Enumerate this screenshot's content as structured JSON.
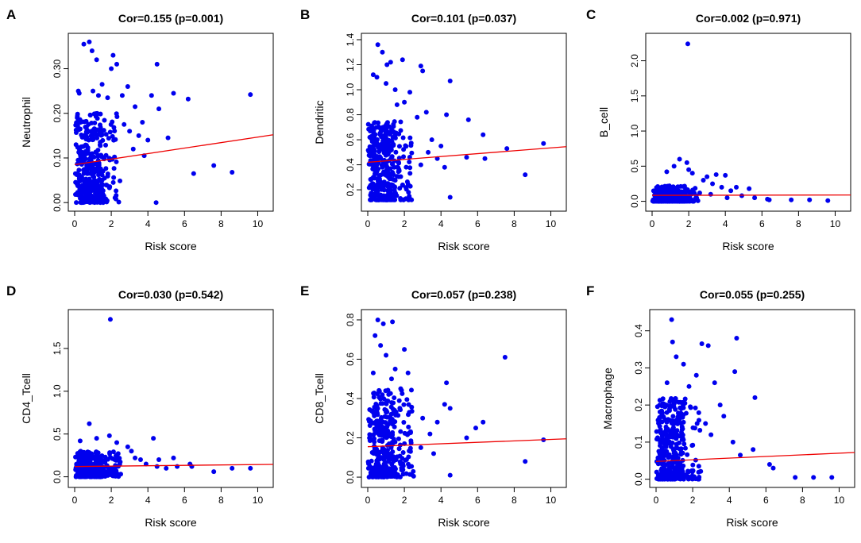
{
  "chart_data": [
    {
      "type": "scatter",
      "letter": "A",
      "title": "Cor=0.155 (p=0.001)",
      "xlabel": "Risk score",
      "ylabel": "Neutrophil",
      "xlim": [
        0,
        10.5
      ],
      "ylim": [
        -0.005,
        0.365
      ],
      "xticks": [
        0,
        2,
        4,
        6,
        8,
        10
      ],
      "yticks": [
        0.0,
        0.1,
        0.2,
        0.3
      ],
      "ytick_labels": [
        "0.00",
        "0.10",
        "0.20",
        "0.30"
      ],
      "line": {
        "x0": 0,
        "y0": 0.085,
        "x1": 10.5,
        "y1": 0.152
      },
      "seed": 11,
      "ncluster": 380,
      "cluster": {
        "xmin": 0,
        "xmax": 2.5,
        "ymin": 0.0,
        "ymax": 0.2,
        "power": 1.7,
        "ylow": 0.0
      },
      "outliers": [
        [
          0.5,
          0.355
        ],
        [
          0.8,
          0.36
        ],
        [
          0.95,
          0.34
        ],
        [
          1.2,
          0.32
        ],
        [
          1.5,
          0.265
        ],
        [
          2.1,
          0.33
        ],
        [
          2.3,
          0.31
        ],
        [
          2.0,
          0.3
        ],
        [
          0.2,
          0.25
        ],
        [
          0.25,
          0.245
        ],
        [
          1.0,
          0.25
        ],
        [
          1.3,
          0.24
        ],
        [
          1.8,
          0.235
        ],
        [
          2.6,
          0.24
        ],
        [
          2.9,
          0.26
        ],
        [
          3.3,
          0.215
        ],
        [
          4.2,
          0.24
        ],
        [
          4.6,
          0.21
        ],
        [
          4.5,
          0.31
        ],
        [
          5.4,
          0.245
        ],
        [
          6.2,
          0.232
        ],
        [
          9.6,
          0.242
        ],
        [
          3.7,
          0.18
        ],
        [
          3.0,
          0.16
        ],
        [
          2.7,
          0.175
        ],
        [
          3.5,
          0.15
        ],
        [
          4.0,
          0.14
        ],
        [
          5.1,
          0.145
        ],
        [
          6.5,
          0.065
        ],
        [
          7.6,
          0.083
        ],
        [
          8.6,
          0.068
        ],
        [
          4.45,
          0.0
        ],
        [
          3.8,
          0.105
        ],
        [
          3.2,
          0.12
        ]
      ]
    },
    {
      "type": "scatter",
      "letter": "B",
      "title": "Cor=0.101 (p=0.037)",
      "xlabel": "Risk score",
      "ylabel": "Dendritic",
      "xlim": [
        0,
        10.5
      ],
      "ylim": [
        0.08,
        1.4
      ],
      "xticks": [
        0,
        2,
        4,
        6,
        8,
        10
      ],
      "yticks": [
        0.2,
        0.4,
        0.6,
        0.8,
        1.0,
        1.2,
        1.4
      ],
      "ytick_labels": [
        "0.2",
        "0.4",
        "0.6",
        "0.8",
        "1.0",
        "1.2",
        "1.4"
      ],
      "line": {
        "x0": 0,
        "y0": 0.42,
        "x1": 10.5,
        "y1": 0.545
      },
      "seed": 23,
      "ncluster": 380,
      "cluster": {
        "xmin": 0,
        "xmax": 2.5,
        "ymin": 0.12,
        "ymax": 0.75,
        "power": 1.4,
        "ylow": 0.1
      },
      "outliers": [
        [
          0.55,
          1.36
        ],
        [
          0.8,
          1.3
        ],
        [
          1.05,
          1.2
        ],
        [
          1.25,
          1.22
        ],
        [
          1.9,
          1.24
        ],
        [
          0.3,
          1.12
        ],
        [
          0.5,
          1.1
        ],
        [
          1.0,
          1.05
        ],
        [
          1.5,
          1.0
        ],
        [
          2.9,
          1.19
        ],
        [
          3.0,
          1.15
        ],
        [
          2.3,
          0.98
        ],
        [
          4.5,
          1.07
        ],
        [
          2.0,
          0.9
        ],
        [
          1.6,
          0.88
        ],
        [
          3.2,
          0.82
        ],
        [
          2.7,
          0.78
        ],
        [
          4.3,
          0.8
        ],
        [
          5.5,
          0.76
        ],
        [
          3.5,
          0.6
        ],
        [
          4.0,
          0.55
        ],
        [
          6.3,
          0.64
        ],
        [
          7.6,
          0.53
        ],
        [
          9.6,
          0.57
        ],
        [
          5.4,
          0.46
        ],
        [
          6.4,
          0.45
        ],
        [
          8.6,
          0.32
        ],
        [
          4.5,
          0.14
        ],
        [
          3.8,
          0.45
        ],
        [
          2.9,
          0.4
        ],
        [
          3.3,
          0.5
        ],
        [
          4.2,
          0.38
        ]
      ]
    },
    {
      "type": "scatter",
      "letter": "C",
      "title": "Cor=0.002 (p=0.971)",
      "xlabel": "Risk score",
      "ylabel": "B_cell",
      "xlim": [
        0,
        10.5
      ],
      "ylim": [
        -0.05,
        2.3
      ],
      "xticks": [
        0,
        2,
        4,
        6,
        8,
        10
      ],
      "yticks": [
        0.0,
        0.5,
        1.0,
        1.5,
        2.0
      ],
      "ytick_labels": [
        "0.0",
        "0.5",
        "1.0",
        "1.5",
        "2.0"
      ],
      "line": {
        "x0": 0,
        "y0": 0.085,
        "x1": 10.5,
        "y1": 0.09
      },
      "seed": 37,
      "ncluster": 380,
      "cluster": {
        "xmin": 0,
        "xmax": 2.6,
        "ymin": 0.0,
        "ymax": 0.22,
        "power": 2.6,
        "ylow": 0.0
      },
      "outliers": [
        [
          1.95,
          2.24
        ],
        [
          1.5,
          0.6
        ],
        [
          1.9,
          0.55
        ],
        [
          1.2,
          0.5
        ],
        [
          2.0,
          0.45
        ],
        [
          0.8,
          0.42
        ],
        [
          2.2,
          0.4
        ],
        [
          3.0,
          0.35
        ],
        [
          3.5,
          0.38
        ],
        [
          4.0,
          0.37
        ],
        [
          2.8,
          0.3
        ],
        [
          3.3,
          0.25
        ],
        [
          3.8,
          0.2
        ],
        [
          4.3,
          0.15
        ],
        [
          4.6,
          0.2
        ],
        [
          5.3,
          0.18
        ],
        [
          4.9,
          0.08
        ],
        [
          5.6,
          0.05
        ],
        [
          6.3,
          0.03
        ],
        [
          6.4,
          0.02
        ],
        [
          7.6,
          0.02
        ],
        [
          8.6,
          0.02
        ],
        [
          9.6,
          0.01
        ],
        [
          3.2,
          0.1
        ],
        [
          2.6,
          0.12
        ],
        [
          4.1,
          0.05
        ]
      ]
    },
    {
      "type": "scatter",
      "letter": "D",
      "title": "Cor=0.030 (p=0.542)",
      "xlabel": "Risk score",
      "ylabel": "CD4_Tcell",
      "xlim": [
        0,
        10.5
      ],
      "ylim": [
        -0.05,
        1.88
      ],
      "xticks": [
        0,
        2,
        4,
        6,
        8,
        10
      ],
      "yticks": [
        0.0,
        0.5,
        1.0,
        1.5
      ],
      "ytick_labels": [
        "0.0",
        "0.5",
        "1.0",
        "1.5"
      ],
      "line": {
        "x0": 0,
        "y0": 0.12,
        "x1": 10.5,
        "y1": 0.145
      },
      "seed": 41,
      "ncluster": 380,
      "cluster": {
        "xmin": 0,
        "xmax": 2.6,
        "ymin": 0.0,
        "ymax": 0.3,
        "power": 2.0,
        "ylow": 0.0
      },
      "outliers": [
        [
          1.95,
          1.84
        ],
        [
          0.8,
          0.62
        ],
        [
          1.2,
          0.45
        ],
        [
          1.9,
          0.48
        ],
        [
          0.3,
          0.42
        ],
        [
          2.3,
          0.4
        ],
        [
          2.9,
          0.35
        ],
        [
          4.3,
          0.45
        ],
        [
          3.1,
          0.3
        ],
        [
          3.6,
          0.2
        ],
        [
          3.9,
          0.15
        ],
        [
          4.6,
          0.2
        ],
        [
          5.0,
          0.1
        ],
        [
          5.4,
          0.22
        ],
        [
          5.6,
          0.12
        ],
        [
          6.3,
          0.15
        ],
        [
          6.4,
          0.12
        ],
        [
          7.6,
          0.06
        ],
        [
          8.6,
          0.1
        ],
        [
          9.6,
          0.1
        ],
        [
          4.5,
          0.12
        ],
        [
          3.3,
          0.22
        ]
      ]
    },
    {
      "type": "scatter",
      "letter": "E",
      "title": "Cor=0.057 (p=0.238)",
      "xlabel": "Risk score",
      "ylabel": "CD8_Tcell",
      "xlim": [
        0,
        10.5
      ],
      "ylim": [
        -0.02,
        0.82
      ],
      "xticks": [
        0,
        2,
        4,
        6,
        8,
        10
      ],
      "yticks": [
        0.0,
        0.2,
        0.4,
        0.6,
        0.8
      ],
      "ytick_labels": [
        "0.0",
        "0.2",
        "0.4",
        "0.6",
        "0.8"
      ],
      "line": {
        "x0": 0,
        "y0": 0.155,
        "x1": 10.5,
        "y1": 0.195
      },
      "seed": 53,
      "ncluster": 380,
      "cluster": {
        "xmin": 0,
        "xmax": 2.6,
        "ymin": 0.0,
        "ymax": 0.45,
        "power": 1.6,
        "ylow": 0.0
      },
      "outliers": [
        [
          0.55,
          0.8
        ],
        [
          0.85,
          0.78
        ],
        [
          1.35,
          0.79
        ],
        [
          0.4,
          0.72
        ],
        [
          0.7,
          0.67
        ],
        [
          1.0,
          0.62
        ],
        [
          1.5,
          0.55
        ],
        [
          1.3,
          0.5
        ],
        [
          0.3,
          0.53
        ],
        [
          2.0,
          0.65
        ],
        [
          2.2,
          0.53
        ],
        [
          1.8,
          0.45
        ],
        [
          7.5,
          0.61
        ],
        [
          6.3,
          0.28
        ],
        [
          5.9,
          0.25
        ],
        [
          4.3,
          0.48
        ],
        [
          4.2,
          0.37
        ],
        [
          4.5,
          0.35
        ],
        [
          3.8,
          0.28
        ],
        [
          3.4,
          0.22
        ],
        [
          3.0,
          0.3
        ],
        [
          9.6,
          0.19
        ],
        [
          8.6,
          0.08
        ],
        [
          4.5,
          0.01
        ],
        [
          5.4,
          0.2
        ],
        [
          3.6,
          0.12
        ],
        [
          2.9,
          0.15
        ]
      ]
    },
    {
      "type": "scatter",
      "letter": "F",
      "title": "Cor=0.055 (p=0.255)",
      "xlabel": "Risk score",
      "ylabel": "Macrophage",
      "xlim": [
        0,
        10.5
      ],
      "ylim": [
        -0.005,
        0.44
      ],
      "xticks": [
        0,
        2,
        4,
        6,
        8,
        10
      ],
      "yticks": [
        0.0,
        0.1,
        0.2,
        0.3,
        0.4
      ],
      "ytick_labels": [
        "0.0",
        "0.1",
        "0.2",
        "0.3",
        "0.4"
      ],
      "line": {
        "x0": 0,
        "y0": 0.048,
        "x1": 10.5,
        "y1": 0.072
      },
      "seed": 67,
      "ncluster": 380,
      "cluster": {
        "xmin": 0,
        "xmax": 2.6,
        "ymin": 0.0,
        "ymax": 0.22,
        "power": 1.9,
        "ylow": 0.0
      },
      "outliers": [
        [
          0.85,
          0.43
        ],
        [
          0.9,
          0.37
        ],
        [
          1.1,
          0.33
        ],
        [
          1.5,
          0.31
        ],
        [
          2.5,
          0.365
        ],
        [
          2.85,
          0.36
        ],
        [
          4.4,
          0.38
        ],
        [
          4.3,
          0.29
        ],
        [
          0.6,
          0.26
        ],
        [
          0.2,
          0.2
        ],
        [
          1.8,
          0.25
        ],
        [
          2.2,
          0.28
        ],
        [
          3.2,
          0.26
        ],
        [
          3.5,
          0.2
        ],
        [
          3.7,
          0.17
        ],
        [
          4.2,
          0.1
        ],
        [
          4.6,
          0.065
        ],
        [
          5.4,
          0.22
        ],
        [
          5.3,
          0.08
        ],
        [
          6.2,
          0.04
        ],
        [
          6.4,
          0.03
        ],
        [
          7.6,
          0.005
        ],
        [
          8.6,
          0.005
        ],
        [
          9.6,
          0.005
        ],
        [
          3.0,
          0.12
        ],
        [
          2.7,
          0.15
        ]
      ]
    }
  ]
}
